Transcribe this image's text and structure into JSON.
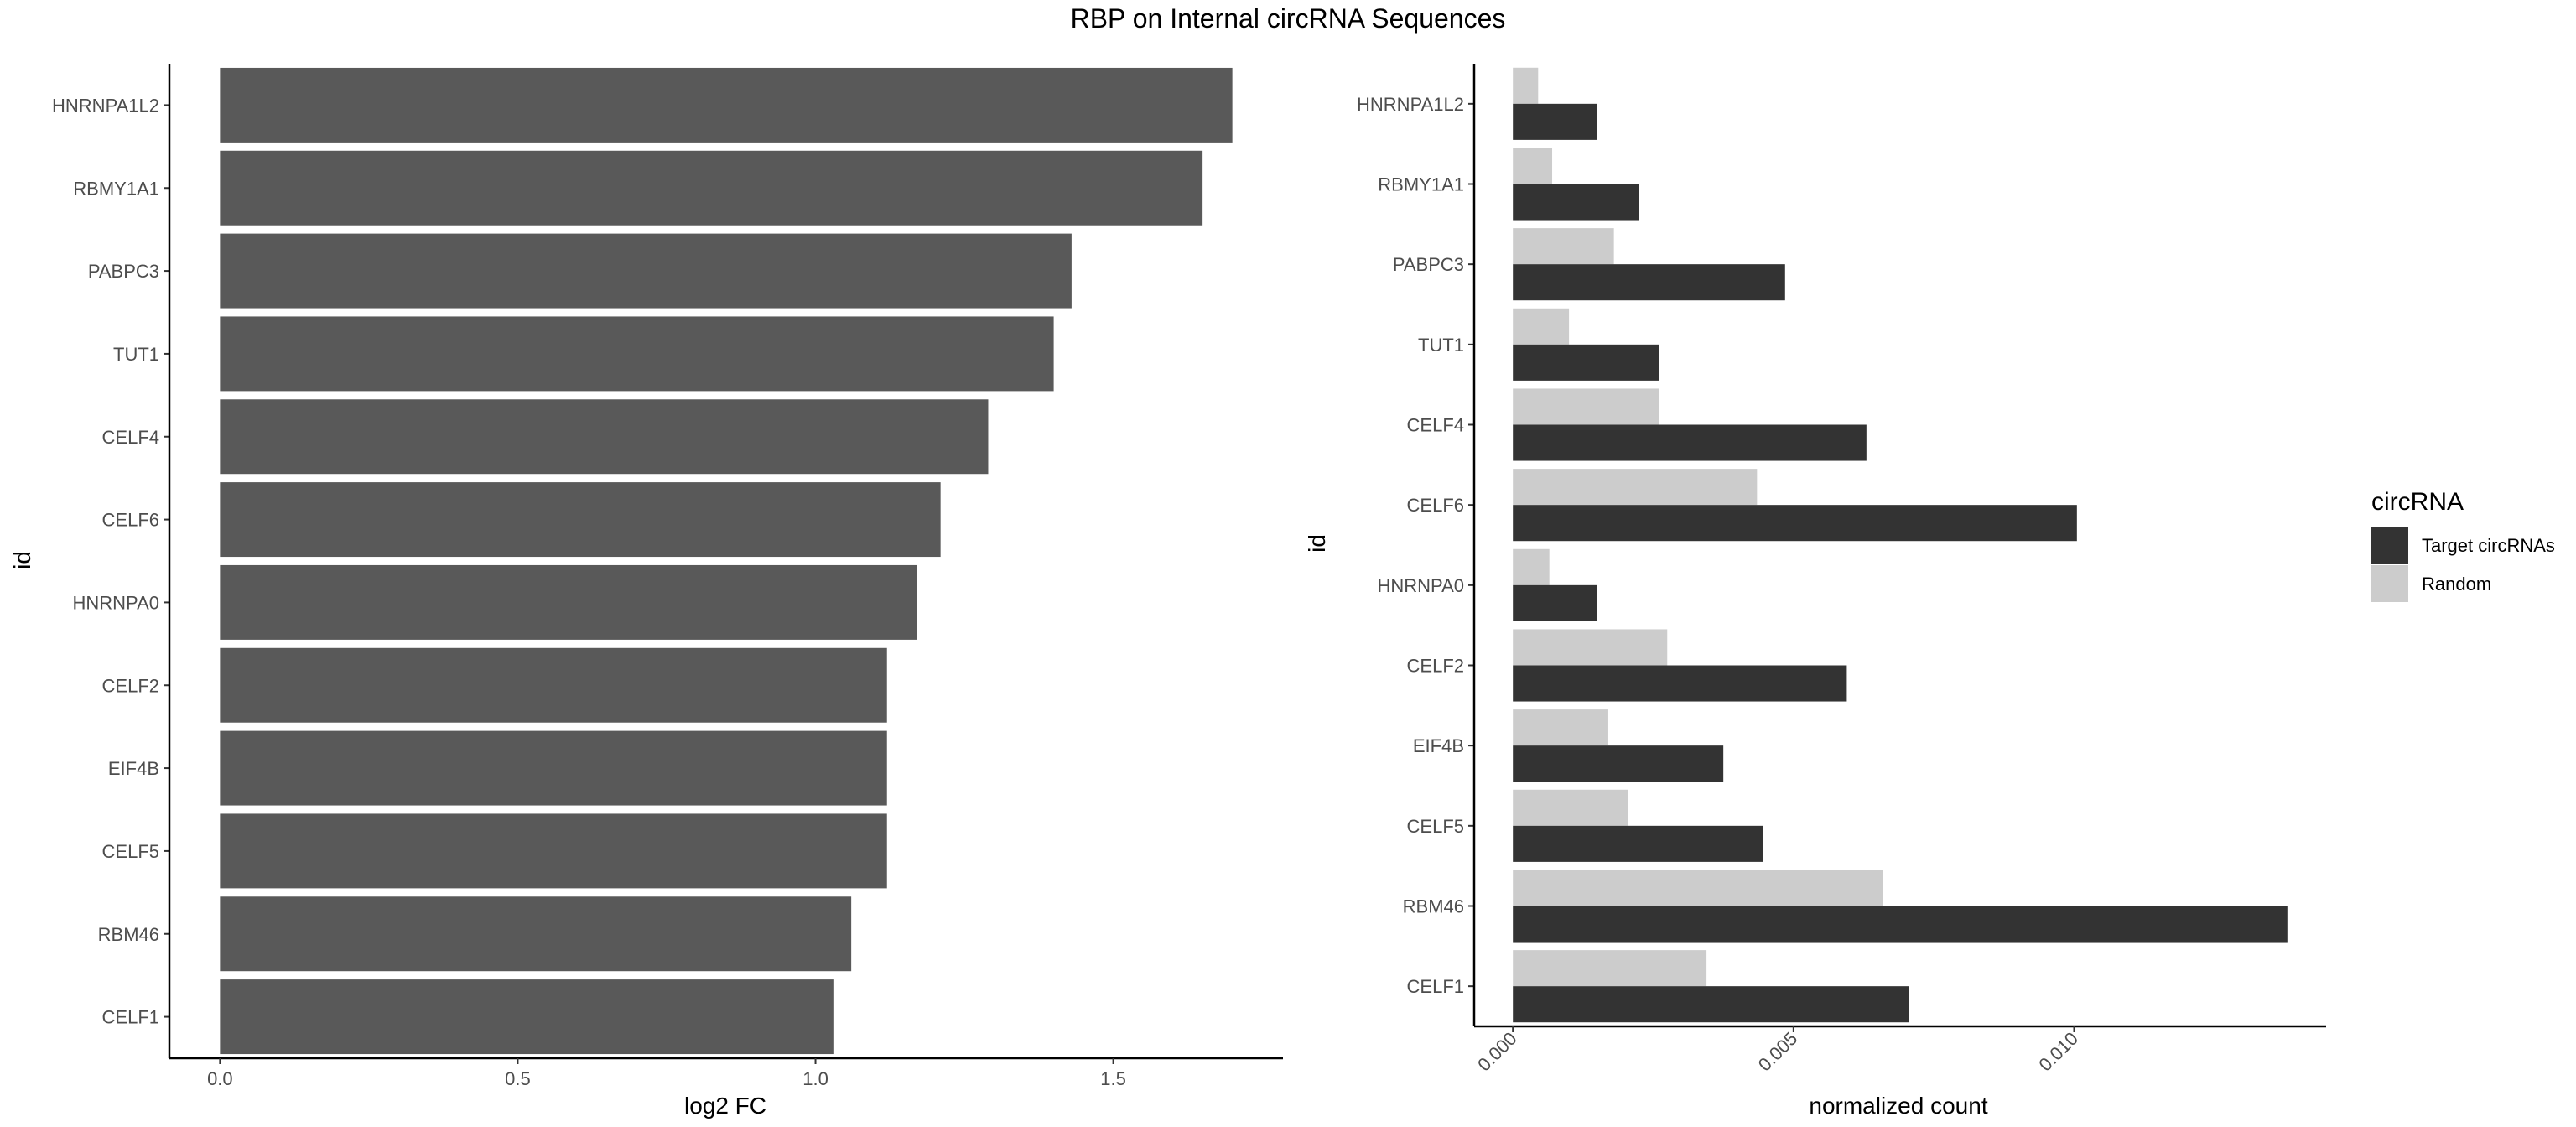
{
  "page_title": "RBP on Internal circRNA Sequences",
  "chart_data": [
    {
      "type": "bar",
      "orientation": "horizontal",
      "categories": [
        "HNRNPA1L2",
        "RBMY1A1",
        "PABPC3",
        "TUT1",
        "CELF4",
        "CELF6",
        "HNRNPA0",
        "CELF2",
        "EIF4B",
        "CELF5",
        "RBM46",
        "CELF1"
      ],
      "values": [
        1.7,
        1.65,
        1.43,
        1.4,
        1.29,
        1.21,
        1.17,
        1.12,
        1.12,
        1.12,
        1.06,
        1.03
      ],
      "xlabel": "log2 FC",
      "ylabel": "id",
      "xlim": [
        -0.085,
        1.785
      ],
      "xticks": [
        0.0,
        0.5,
        1.0,
        1.5
      ],
      "xtick_labels": [
        "0.0",
        "0.5",
        "1.0",
        "1.5"
      ],
      "bar_color": "#595959",
      "grid": false
    },
    {
      "type": "bar",
      "orientation": "horizontal",
      "grouped": true,
      "categories": [
        "HNRNPA1L2",
        "RBMY1A1",
        "PABPC3",
        "TUT1",
        "CELF4",
        "CELF6",
        "HNRNPA0",
        "CELF2",
        "EIF4B",
        "CELF5",
        "RBM46",
        "CELF1"
      ],
      "series": [
        {
          "name": "Target circRNAs",
          "color": "#333333",
          "values": [
            0.0015,
            0.00225,
            0.00485,
            0.0026,
            0.0063,
            0.01005,
            0.0015,
            0.00595,
            0.00375,
            0.00445,
            0.0138,
            0.00705
          ]
        },
        {
          "name": "Random",
          "color": "#cccccc",
          "values": [
            0.00045,
            0.0007,
            0.0018,
            0.001,
            0.0026,
            0.00435,
            0.00065,
            0.00275,
            0.0017,
            0.00205,
            0.0066,
            0.00345
          ]
        }
      ],
      "xlabel": "normalized count",
      "ylabel": "id",
      "xlim": [
        -0.00069,
        0.01449
      ],
      "xticks": [
        0.0,
        0.005,
        0.01
      ],
      "xtick_labels": [
        "0.000",
        "0.005",
        "0.010"
      ],
      "legend_title": "circRNA",
      "legend_position": "right",
      "grid": false
    }
  ]
}
